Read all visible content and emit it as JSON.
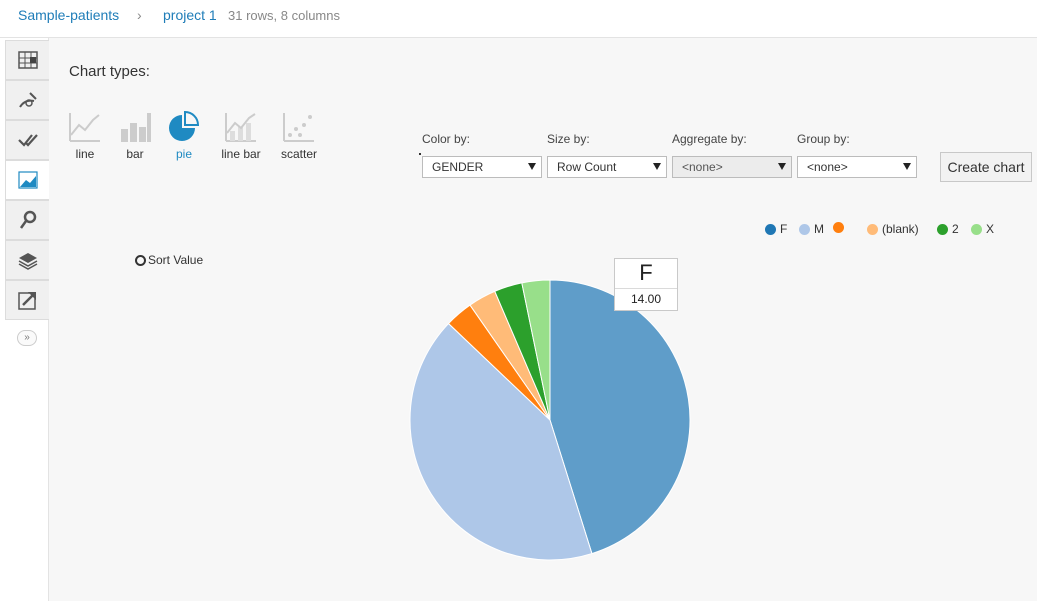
{
  "breadcrumb": {
    "root": "Sample-patients",
    "separator": "›",
    "project": "project 1",
    "meta": "31 rows, 8 columns"
  },
  "sidebar": {
    "items": [
      {
        "icon": "grid-icon"
      },
      {
        "icon": "wand-icon"
      },
      {
        "icon": "checks-icon"
      },
      {
        "icon": "chart-icon",
        "active": true
      },
      {
        "icon": "map-pin-icon"
      },
      {
        "icon": "layers-icon"
      },
      {
        "icon": "export-icon"
      }
    ],
    "expand_label": "»"
  },
  "chart_types": {
    "title": "Chart types:",
    "items": [
      {
        "label": "line",
        "icon": "line-chart-icon"
      },
      {
        "label": "bar",
        "icon": "bar-chart-icon"
      },
      {
        "label": "pie",
        "icon": "pie-chart-icon",
        "selected": true
      },
      {
        "label": "line bar",
        "icon": "line-bar-chart-icon"
      },
      {
        "label": "scatter",
        "icon": "scatter-chart-icon"
      }
    ]
  },
  "options": {
    "color_by": {
      "label": "Color by:",
      "value": "GENDER"
    },
    "size_by": {
      "label": "Size by:",
      "value": "Row Count"
    },
    "aggregate_by": {
      "label": "Aggregate by:",
      "value": "<none>"
    },
    "group_by": {
      "label": "Group by:",
      "value": "<none>"
    },
    "create_button": "Create chart"
  },
  "sort_option": "Sort Value",
  "tooltip": {
    "key": "F",
    "value": "14.00"
  },
  "colors": {
    "accent": "#1f8ac2",
    "link": "#1f7db8"
  },
  "chart_data": {
    "type": "pie",
    "categories": [
      "F",
      "M",
      "",
      "(blank)",
      "2",
      "X"
    ],
    "values": [
      14,
      13,
      1,
      1,
      1,
      1
    ],
    "colors": [
      "#5f9dc9",
      "#aec7e8",
      "#ff7f0e",
      "#ffbb78",
      "#2ca02c",
      "#98df8a"
    ],
    "legend_colors": [
      "#1f77b4",
      "#aec7e8",
      "#ff7f0e",
      "#ffbb78",
      "#2ca02c",
      "#98df8a"
    ],
    "legend": "top-right"
  }
}
